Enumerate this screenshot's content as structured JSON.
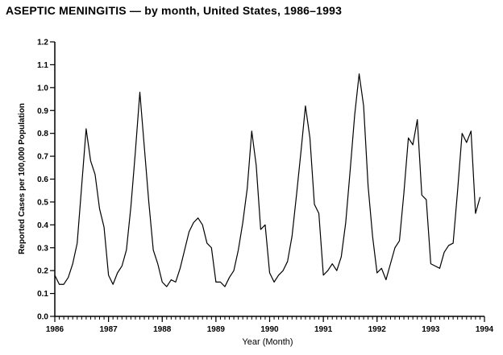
{
  "title": "ASEPTIC MENINGITIS — by month, United States, 1986–1993",
  "colors": {
    "background": "#ffffff",
    "text": "#000000",
    "line": "#000000"
  },
  "chart_data": {
    "type": "line",
    "title": "ASEPTIC MENINGITIS — by month, United States, 1986–1993",
    "xlabel": "Year (Month)",
    "ylabel": "Reported Cases per 100,000 Population",
    "x_unit": "month",
    "x_range": "Jan 1986 – Dec 1993",
    "x_tick_labels": [
      "1986",
      "1987",
      "1988",
      "1989",
      "1990",
      "1991",
      "1992",
      "1993",
      "1994"
    ],
    "y_tick_labels": [
      "0.0",
      "0.1",
      "0.2",
      "0.3",
      "0.4",
      "0.5",
      "0.6",
      "0.7",
      "0.8",
      "0.9",
      "1.0",
      "1.1",
      "1.2"
    ],
    "ylim": [
      0.0,
      1.2
    ],
    "grid": false,
    "legend": false,
    "minor_ticks_x": "monthly",
    "series": [
      {
        "name": "Aseptic meningitis — reported cases per 100,000 population",
        "values": [
          0.18,
          0.14,
          0.14,
          0.17,
          0.23,
          0.32,
          0.57,
          0.82,
          0.68,
          0.62,
          0.47,
          0.39,
          0.18,
          0.14,
          0.19,
          0.22,
          0.29,
          0.48,
          0.72,
          0.98,
          0.74,
          0.5,
          0.29,
          0.23,
          0.15,
          0.13,
          0.16,
          0.15,
          0.21,
          0.29,
          0.37,
          0.41,
          0.43,
          0.4,
          0.32,
          0.3,
          0.15,
          0.15,
          0.13,
          0.17,
          0.2,
          0.29,
          0.41,
          0.56,
          0.81,
          0.66,
          0.38,
          0.4,
          0.19,
          0.15,
          0.18,
          0.2,
          0.24,
          0.35,
          0.53,
          0.72,
          0.92,
          0.78,
          0.49,
          0.45,
          0.18,
          0.2,
          0.23,
          0.2,
          0.26,
          0.41,
          0.64,
          0.88,
          1.06,
          0.92,
          0.57,
          0.35,
          0.19,
          0.21,
          0.16,
          0.23,
          0.3,
          0.33,
          0.54,
          0.78,
          0.75,
          0.86,
          0.53,
          0.51,
          0.23,
          0.22,
          0.21,
          0.28,
          0.31,
          0.32,
          0.55,
          0.8,
          0.76,
          0.81,
          0.45,
          0.52
        ]
      }
    ]
  }
}
